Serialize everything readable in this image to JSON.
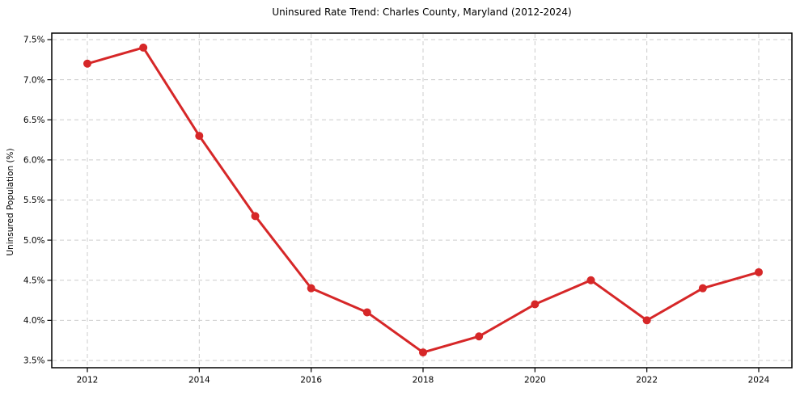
{
  "chart_data": {
    "type": "line",
    "title": "Uninsured Rate Trend: Charles County, Maryland (2012-2024)",
    "xlabel": "",
    "ylabel": "Uninsured Population (%)",
    "x": [
      2012,
      2013,
      2014,
      2015,
      2016,
      2017,
      2018,
      2019,
      2020,
      2021,
      2022,
      2023,
      2024
    ],
    "values": [
      7.2,
      7.4,
      6.3,
      5.3,
      4.4,
      4.1,
      3.6,
      3.8,
      4.2,
      4.5,
      4.0,
      4.4,
      4.6
    ],
    "xtick_values": [
      2012,
      2014,
      2016,
      2018,
      2020,
      2022,
      2024
    ],
    "xtick_labels": [
      "2012",
      "2014",
      "2016",
      "2018",
      "2020",
      "2022",
      "2024"
    ],
    "ytick_values": [
      3.5,
      4.0,
      4.5,
      5.0,
      5.5,
      6.0,
      6.5,
      7.0,
      7.5
    ],
    "ytick_labels": [
      "3.5%",
      "4.0%",
      "4.5%",
      "5.0%",
      "5.5%",
      "6.0%",
      "6.5%",
      "7.0%",
      "7.5%"
    ],
    "xlim": [
      2011.4,
      2024.6
    ],
    "ylim": [
      3.42,
      7.56
    ],
    "grid": true,
    "grid_style": "dashed",
    "legend": false,
    "line_color": "#d62728",
    "marker": "circle",
    "marker_color": "#d62728",
    "grid_color": "#cccccc",
    "axis_color": "#000000",
    "background_color": "#ffffff"
  }
}
